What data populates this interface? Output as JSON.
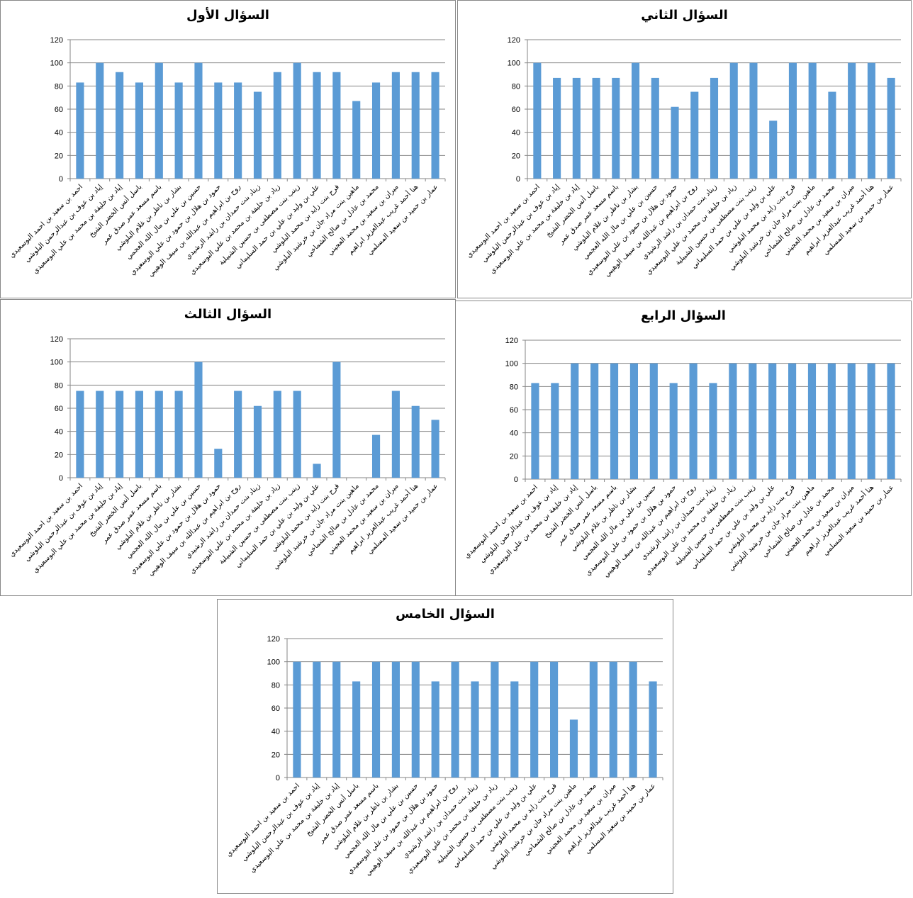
{
  "chart_data": [
    {
      "type": "bar",
      "title": "السؤال الأول",
      "ylim": [
        0,
        120
      ],
      "yticks": [
        0,
        20,
        40,
        60,
        80,
        100,
        120
      ],
      "values": [
        83,
        100,
        92,
        83,
        100,
        83,
        100,
        83,
        83,
        75,
        92,
        100,
        92,
        92,
        67,
        83,
        92,
        92,
        92
      ]
    },
    {
      "type": "bar",
      "title": "السؤال الثاني",
      "ylim": [
        0,
        120
      ],
      "yticks": [
        0,
        20,
        40,
        60,
        80,
        100,
        120
      ],
      "values": [
        100,
        87,
        87,
        87,
        87,
        100,
        87,
        62,
        75,
        87,
        100,
        100,
        50,
        100,
        100,
        75,
        100,
        100,
        87
      ]
    },
    {
      "type": "bar",
      "title": "السؤال الثالث",
      "ylim": [
        0,
        120
      ],
      "yticks": [
        0,
        20,
        40,
        60,
        80,
        100,
        120
      ],
      "values": [
        75,
        75,
        75,
        75,
        75,
        75,
        100,
        25,
        75,
        62,
        75,
        75,
        12,
        100,
        0,
        37,
        75,
        62,
        50
      ]
    },
    {
      "type": "bar",
      "title": "السؤال الرابع",
      "ylim": [
        0,
        120
      ],
      "yticks": [
        0,
        20,
        40,
        60,
        80,
        100,
        120
      ],
      "values": [
        83,
        83,
        100,
        100,
        100,
        100,
        100,
        83,
        100,
        83,
        100,
        100,
        100,
        100,
        100,
        100,
        100,
        100,
        100
      ]
    },
    {
      "type": "bar",
      "title": "السؤال الخامس",
      "ylim": [
        0,
        120
      ],
      "yticks": [
        0,
        20,
        40,
        60,
        80,
        100,
        120
      ],
      "values": [
        100,
        100,
        100,
        83,
        100,
        100,
        100,
        83,
        100,
        83,
        100,
        83,
        100,
        100,
        50,
        100,
        100,
        100,
        83
      ]
    }
  ],
  "categories": [
    "احمد بن سعيد بن احمد البوسعيدي",
    "إياد بن عوف بن عبدالرحمن البلوشي",
    "إياد بن خليفة بن محمد بن علي البوسعيدي",
    "باسل أنس الخضر الشيخ",
    "باسم مسعد عمر صدق عمر",
    "بشار بن ناظر بن غلام البلوشي",
    "حسين بن علي بن مال الله العجمي",
    "حمود بن هلال بن حمود بن علي البوسعيدي",
    "روح بن ابراهيم بن عبدالله بن سيف الوهيبي",
    "زيناد بنت حمدان بن راشد الرشيدي",
    "زياد بن خليفة بن محمد بن علي البوسعيدي",
    "زينب بنت مصطفى بن حسين الشبيلية",
    "علي بن وليد بن علي بن حمد السليماني",
    "فرح بنت زايد بن محمد البلوشي",
    "ماهين بنت مراد جان بن خرشيد البلوشي",
    "محمد بن عادل بن صالح الشماخي",
    "ميران بن سعيد بن محمد العجيني",
    "هنا أحمد غريب عبدالعزيز ابراهيم",
    "عمار بن حميد بن سعيد المسلمي"
  ],
  "bar_color": "#5b9bd5"
}
